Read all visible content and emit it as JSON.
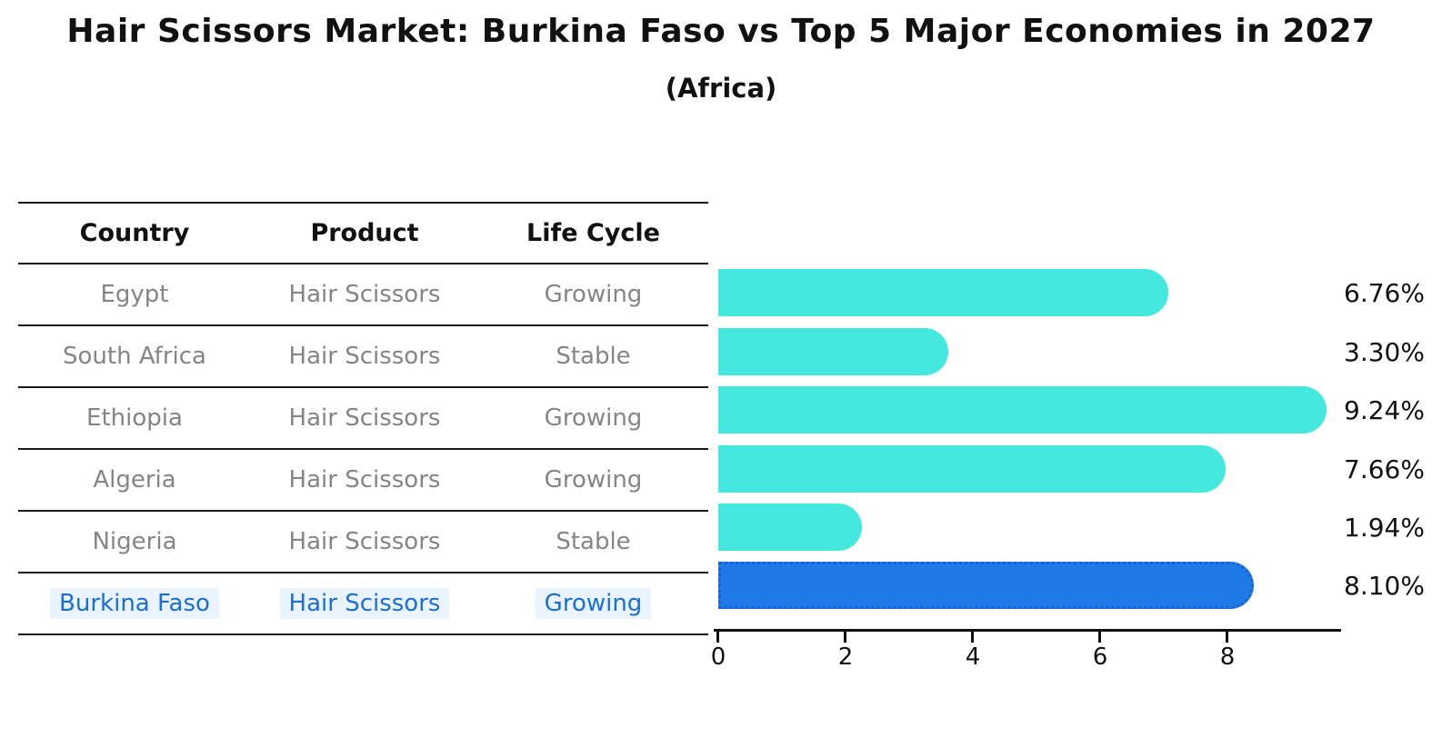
{
  "title": "Hair Scissors Market: Burkina Faso vs Top 5 Major Economies in 2027",
  "subtitle": "(Africa)",
  "table": {
    "headers": {
      "country": "Country",
      "product": "Product",
      "life_cycle": "Life Cycle"
    },
    "rows": [
      {
        "country": "Egypt",
        "product": "Hair Scissors",
        "life_cycle": "Growing",
        "highlighted": false
      },
      {
        "country": "South Africa",
        "product": "Hair Scissors",
        "life_cycle": "Stable",
        "highlighted": false
      },
      {
        "country": "Ethiopia",
        "product": "Hair Scissors",
        "life_cycle": "Growing",
        "highlighted": false
      },
      {
        "country": "Algeria",
        "product": "Hair Scissors",
        "life_cycle": "Growing",
        "highlighted": false
      },
      {
        "country": "Nigeria",
        "product": "Hair Scissors",
        "life_cycle": "Stable",
        "highlighted": false
      },
      {
        "country": "Burkina Faso",
        "product": "Hair Scissors",
        "life_cycle": "Growing",
        "highlighted": true
      }
    ]
  },
  "chart_data": {
    "type": "bar",
    "orientation": "horizontal",
    "title": "Hair Scissors Market: Burkina Faso vs Top 5 Major Economies in 2027",
    "subtitle": "(Africa)",
    "categories": [
      "Egypt",
      "South Africa",
      "Ethiopia",
      "Algeria",
      "Nigeria",
      "Burkina Faso"
    ],
    "values": [
      6.76,
      3.3,
      9.24,
      7.66,
      1.94,
      8.1
    ],
    "value_labels": [
      "6.76%",
      "3.30%",
      "9.24%",
      "7.66%",
      "1.94%",
      "8.10%"
    ],
    "xticks": [
      "0",
      "2",
      "4",
      "6",
      "8"
    ],
    "xlim": [
      0,
      9.9
    ],
    "grid": false,
    "legend_position": "none",
    "bar_color": "#45e8df",
    "highlight_bar_color": "#1f7ae8",
    "highlight_index": 5
  },
  "colors": {
    "background": "#ffffff",
    "bar_cyan": "#45e8df",
    "bar_blue": "#1f7ae8",
    "bar_blue_border": "#1663d9",
    "row_text": "#858585",
    "highlight_text": "#1a6fd6",
    "axis_and_lines": "#111111"
  }
}
